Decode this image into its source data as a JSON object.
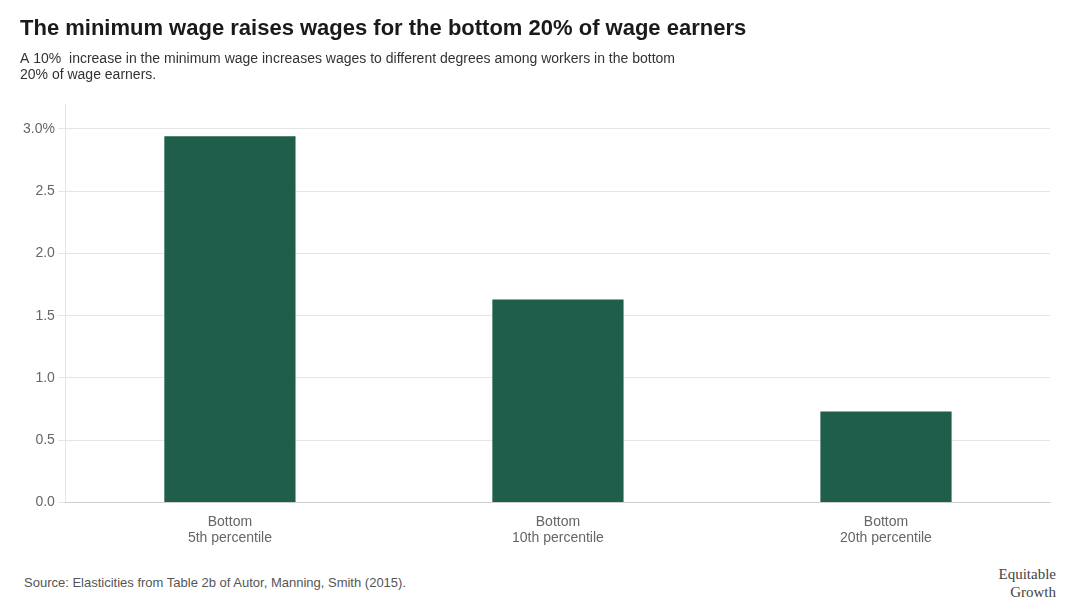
{
  "chart_data": {
    "type": "bar",
    "title": "The minimum wage raises wages for the bottom 20% of wage earners",
    "subtitle": "A 10%  increase in the minimum wage increases wages to different degrees among workers in the bottom\n20% of wage earners.",
    "categories": [
      "Bottom\n5th percentile",
      "Bottom\n10th percentile",
      "Bottom\n20th percentile"
    ],
    "values": [
      2.94,
      1.63,
      0.73
    ],
    "color": "#1e5e4a",
    "ylim": [
      0,
      3.2
    ],
    "yticks": [
      {
        "value": 0,
        "label": "0.0"
      },
      0.5,
      {
        "value": 1,
        "label": "1.0"
      },
      1.5,
      {
        "value": 2,
        "label": "2.0"
      },
      2.5,
      {
        "value": 3,
        "label": "3.0%"
      }
    ],
    "grid": true,
    "annotations": [
      "Source: Elasticities from Table 2b of Autor, Manning, Smith (2015).",
      "Equitable\nGrowth"
    ]
  }
}
